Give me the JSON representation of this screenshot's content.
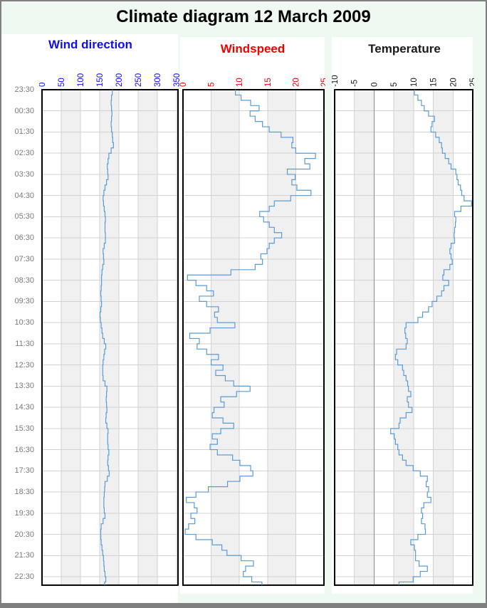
{
  "header": {
    "title": "Climate diagram 12 March 2009"
  },
  "colors": {
    "page_bg": "#f0f9f1",
    "card_bg": "#ffffff",
    "frame": "#7f7f7f",
    "line": "#5b9bd5",
    "grid": "#d2d2d2",
    "band": "#f0f0f0",
    "plot_border": "#000000",
    "time_label": "#7a7a7a",
    "zero_line": "#8c8c8c"
  },
  "time_axis": {
    "label_color": "#7a7a7a",
    "labels": [
      "23:30",
      "00:30",
      "01:30",
      "02:30",
      "03:30",
      "04:30",
      "05:30",
      "06:30",
      "07:30",
      "08:30",
      "09:30",
      "10:30",
      "11:30",
      "12:30",
      "13:30",
      "14:30",
      "15:30",
      "16:30",
      "17:30",
      "18:30",
      "19:30",
      "20:30",
      "21:30",
      "22:30"
    ],
    "hours_shown": 23.4
  },
  "chart_data": [
    {
      "type": "line",
      "title": "Wind direction",
      "accent": "#0f0fe8",
      "unit": "degrees",
      "xlim": [
        0,
        354
      ],
      "ticks": [
        0,
        50,
        100,
        150,
        200,
        250,
        300,
        350
      ],
      "bands": [
        [
          50,
          100
        ],
        [
          150,
          200
        ],
        [
          250,
          300
        ]
      ],
      "zero_line": false,
      "time_start": "23:30",
      "sample_interval_minutes": 15,
      "values": [
        183,
        181,
        180,
        181,
        182,
        181,
        180,
        181,
        183,
        184,
        186,
        180,
        174,
        172,
        170,
        171,
        172,
        168,
        164,
        161,
        159,
        160,
        162,
        164,
        165,
        164,
        164,
        165,
        165,
        162,
        159,
        160,
        161,
        158,
        156,
        155,
        155,
        154,
        153,
        154,
        155,
        153,
        151,
        152,
        154,
        156,
        158,
        162,
        166,
        163,
        161,
        159,
        158,
        158,
        159,
        164,
        169,
        168,
        167,
        168,
        169,
        167,
        166,
        169,
        172,
        171,
        171,
        172,
        174,
        172,
        171,
        173,
        175,
        170,
        164,
        163,
        162,
        161,
        161,
        162,
        164,
        159,
        154,
        153,
        153,
        154,
        156,
        158,
        160,
        161,
        162,
        164,
        166,
        163
      ]
    },
    {
      "type": "line",
      "title": "Windspeed",
      "accent": "#f00000",
      "unit": "m/s",
      "xlim": [
        0,
        25
      ],
      "ticks": [
        0,
        5,
        10,
        15,
        20,
        25
      ],
      "bands": [
        [
          5,
          10
        ],
        [
          15,
          20
        ]
      ],
      "zero_line": false,
      "time_start": "23:30",
      "sample_interval_minutes": 15,
      "values": [
        9.3,
        10.3,
        12.0,
        13.5,
        11.9,
        12.8,
        14.1,
        15.3,
        17.4,
        19.5,
        19.3,
        20.0,
        23.5,
        21.6,
        22.5,
        18.5,
        19.9,
        19.3,
        20.2,
        22.7,
        19.1,
        16.2,
        15.3,
        13.6,
        14.3,
        15.3,
        16.2,
        17.5,
        16.2,
        15.3,
        14.9,
        13.8,
        14.1,
        12.8,
        8.5,
        0.8,
        2.3,
        4.2,
        5.4,
        2.9,
        4.2,
        6.3,
        5.6,
        6.1,
        9.2,
        4.8,
        1.2,
        2.9,
        2.5,
        4.2,
        6.3,
        5.0,
        7.1,
        5.8,
        7.5,
        9.0,
        11.9,
        9.5,
        6.7,
        7.3,
        5.5,
        5.2,
        7.1,
        9.0,
        6.7,
        5.2,
        6.1,
        4.8,
        6.1,
        8.8,
        10.1,
        12.0,
        12.4,
        10.1,
        7.9,
        4.5,
        2.3,
        0.6,
        2.0,
        2.5,
        1.4,
        2.1,
        1.0,
        0.4,
        2.3,
        5.2,
        6.9,
        7.8,
        10.3,
        12.5,
        11.1,
        10.7,
        12.2,
        14.0
      ]
    },
    {
      "type": "line",
      "title": "Temperature",
      "accent": "#1a1a1a",
      "unit": "degC",
      "xlim": [
        -10,
        25
      ],
      "ticks": [
        -10,
        -5,
        0,
        5,
        10,
        15,
        20,
        25
      ],
      "bands": [
        [
          -5,
          0
        ],
        [
          5,
          10
        ],
        [
          15,
          20
        ]
      ],
      "zero_line": true,
      "time_start": "23:30",
      "sample_interval_minutes": 15,
      "values": [
        10.2,
        11.1,
        12.0,
        12.7,
        13.8,
        15.3,
        14.7,
        14.4,
        15.6,
        16.5,
        17.1,
        17.3,
        18.0,
        18.9,
        19.5,
        20.7,
        21.0,
        21.3,
        21.9,
        22.2,
        22.8,
        24.7,
        22.0,
        20.4,
        20.7,
        20.6,
        20.4,
        20.3,
        20.4,
        19.5,
        19.2,
        19.5,
        19.8,
        19.2,
        17.7,
        17.4,
        18.9,
        17.7,
        17.1,
        15.9,
        14.7,
        13.8,
        12.3,
        11.1,
        8.1,
        7.8,
        8.0,
        8.4,
        8.1,
        5.7,
        5.4,
        6.0,
        7.2,
        7.5,
        8.1,
        8.5,
        8.7,
        9.3,
        8.4,
        8.7,
        9.6,
        8.1,
        6.6,
        6.3,
        4.2,
        5.1,
        5.4,
        6.0,
        6.3,
        7.2,
        8.1,
        9.9,
        11.7,
        13.5,
        13.2,
        13.8,
        13.5,
        14.4,
        12.6,
        12.0,
        12.3,
        12.0,
        12.9,
        13.0,
        11.1,
        9.3,
        10.2,
        10.5,
        10.5,
        11.4,
        13.5,
        11.7,
        9.9,
        6.3
      ]
    }
  ]
}
